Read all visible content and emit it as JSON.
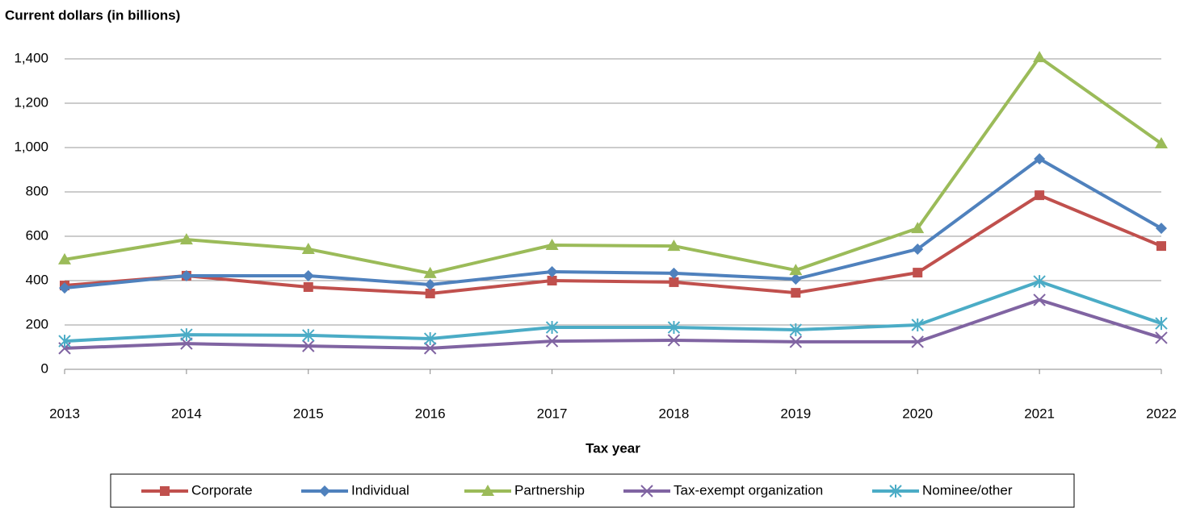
{
  "chart_data": {
    "type": "line",
    "y_label": "Current dollars (in billions)",
    "x_label": "Tax year",
    "categories": [
      "2013",
      "2014",
      "2015",
      "2016",
      "2017",
      "2018",
      "2019",
      "2020",
      "2021",
      "2022"
    ],
    "ylim": [
      0,
      1400
    ],
    "yticks": [
      0,
      200,
      400,
      600,
      800,
      {
        "value": 1000,
        "label": "1,000"
      },
      {
        "value": 1200,
        "label": "1,200"
      },
      {
        "value": 1400,
        "label": "1,400"
      }
    ],
    "grid": true,
    "legend": "bottom",
    "series": [
      {
        "name": "Corporate",
        "color": "#c0504d",
        "marker": "square",
        "values": [
          378,
          422,
          371,
          342,
          400,
          393,
          345,
          436,
          785,
          556
        ]
      },
      {
        "name": "Individual",
        "color": "#4f81bd",
        "marker": "diamond",
        "values": [
          367,
          422,
          422,
          382,
          440,
          433,
          407,
          542,
          949,
          636
        ]
      },
      {
        "name": "Partnership",
        "color": "#9bbb59",
        "marker": "triangle",
        "values": [
          495,
          585,
          542,
          433,
          560,
          556,
          447,
          636,
          1407,
          1018
        ]
      },
      {
        "name": "Tax-exempt organization",
        "color": "#8064a2",
        "marker": "x",
        "values": [
          95,
          116,
          105,
          95,
          127,
          131,
          124,
          124,
          313,
          142
        ]
      },
      {
        "name": "Nominee/other",
        "color": "#4bacc6",
        "marker": "asterisk",
        "values": [
          127,
          156,
          153,
          138,
          189,
          189,
          178,
          200,
          396,
          207
        ]
      }
    ]
  }
}
